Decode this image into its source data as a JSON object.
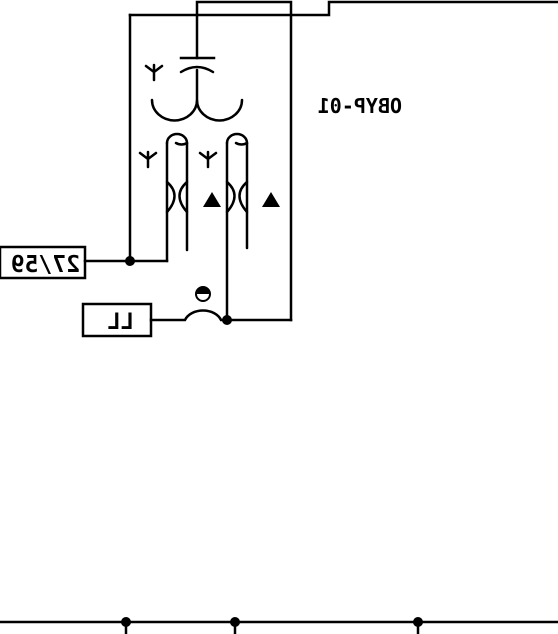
{
  "device_label": "OBYP-01",
  "terminals": {
    "voltage_relay": "27/59",
    "live_line": "LL"
  },
  "icons": {
    "winding_marker": "wye-connection-icon",
    "polarity_marker": "triangle-polarity-icon",
    "contact_marker": "half-filled-circle-icon"
  }
}
